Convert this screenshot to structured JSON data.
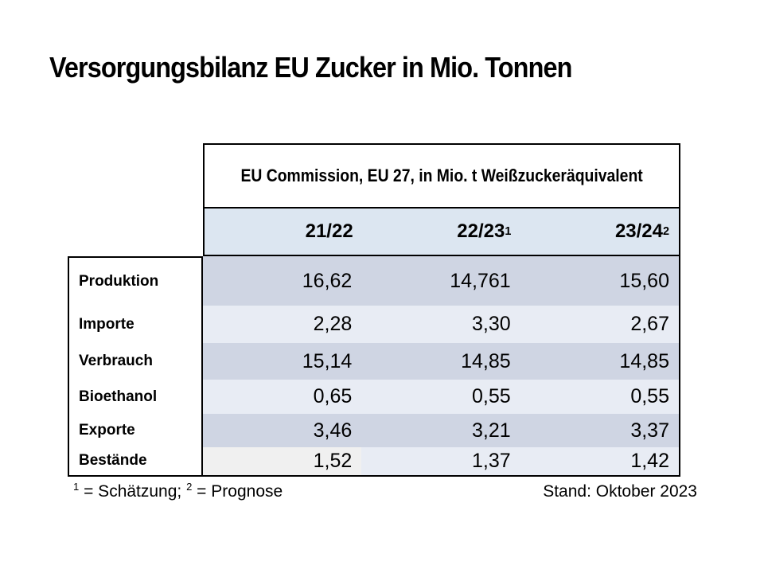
{
  "title": "Versorgungsbilanz EU Zucker in Mio. Tonnen",
  "table": {
    "merged_header": "EU Commission, EU 27, in Mio. t Weißzuckeräquivalent",
    "column_headers": [
      {
        "text": "21/22",
        "sup": ""
      },
      {
        "text": "22/23",
        "sup": "1"
      },
      {
        "text": "23/24",
        "sup": "2"
      }
    ],
    "rows": [
      {
        "label": "Produktion",
        "values": [
          "16,62",
          "14,761",
          "15,60"
        ]
      },
      {
        "label": "Importe",
        "values": [
          "2,28",
          "3,30",
          "2,67"
        ]
      },
      {
        "label": "Verbrauch",
        "values": [
          "15,14",
          "14,85",
          "14,85"
        ]
      },
      {
        "label": "Bioethanol",
        "values": [
          "0,65",
          "0,55",
          "0,55"
        ]
      },
      {
        "label": "Exporte",
        "values": [
          "3,46",
          "3,21",
          "3,37"
        ]
      },
      {
        "label": "Bestände",
        "values": [
          "1,52",
          "1,37",
          "1,42"
        ]
      }
    ]
  },
  "footer": {
    "note": {
      "sup1": "1",
      "text1": " = Schätzung; ",
      "sup2": "2",
      "text2": " = Prognose"
    },
    "status": "Stand: Oktober 2023"
  },
  "colors": {
    "row_dark": "#cfd5e3",
    "row_light": "#e8ecf4",
    "header_blue": "#dce6f1",
    "special_cell_gray": "#f0f0f0",
    "border": "#000000",
    "text": "#000000",
    "background": "#ffffff"
  }
}
